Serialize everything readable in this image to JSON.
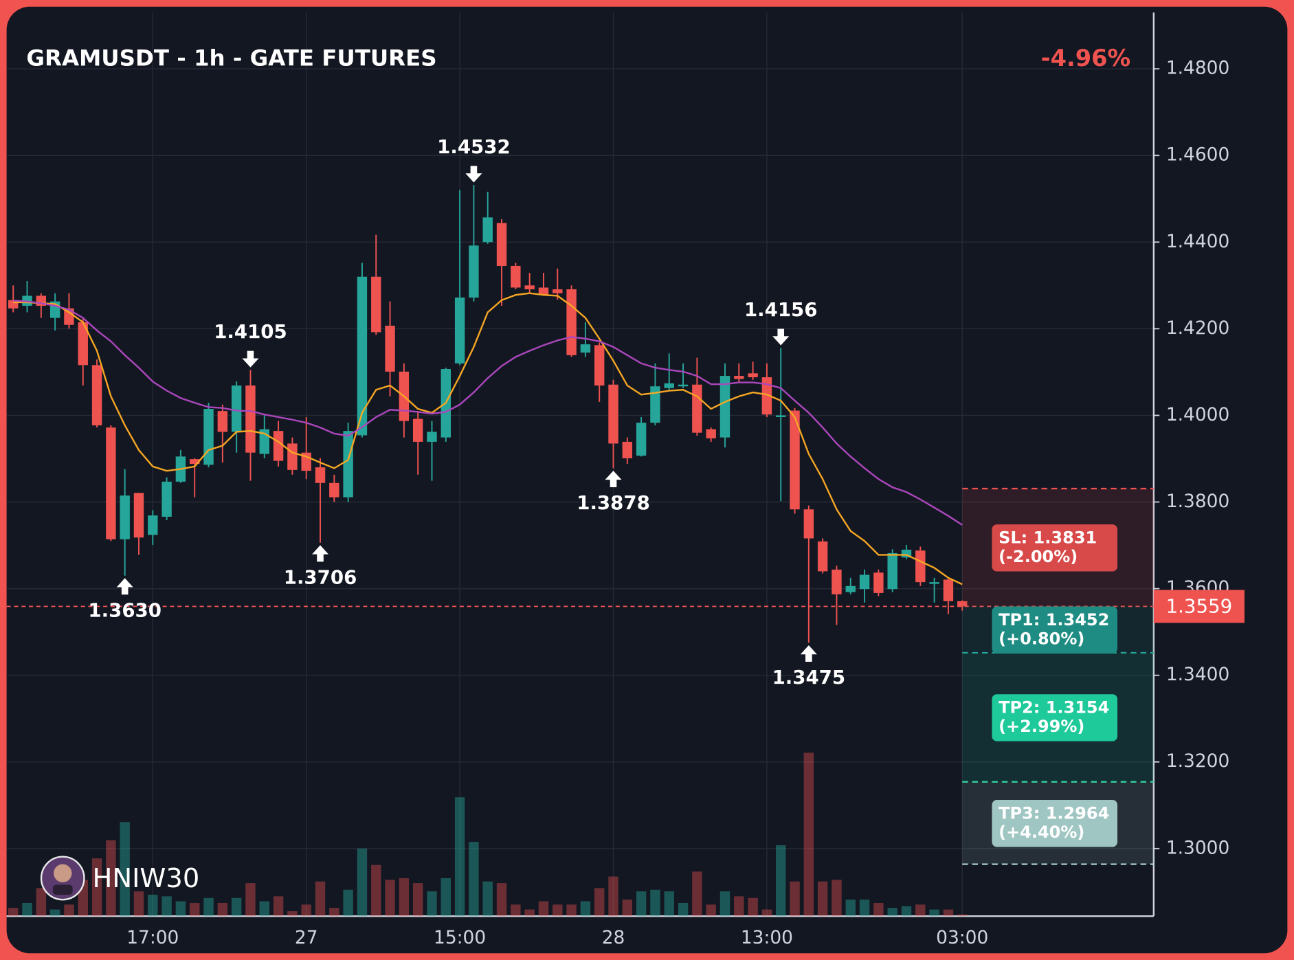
{
  "chart_data": {
    "type": "candlestick",
    "title": "GRAMUSDT - 1h - GATE FUTURES",
    "change": "-4.96%",
    "watermark": "HNIW30",
    "up_color": "#26a69a",
    "down_color": "#ef5350",
    "grid": true,
    "categories": [
      null,
      null,
      null,
      null,
      null,
      null,
      null,
      null,
      null,
      null,
      "17:00",
      null,
      null,
      null,
      null,
      null,
      null,
      null,
      null,
      null,
      null,
      "27",
      null,
      null,
      null,
      null,
      null,
      null,
      null,
      null,
      null,
      null,
      "15:00",
      null,
      null,
      null,
      null,
      null,
      null,
      null,
      null,
      null,
      null,
      "28",
      null,
      null,
      null,
      null,
      null,
      null,
      null,
      null,
      null,
      null,
      "13:00",
      null,
      null,
      null,
      null,
      null,
      null,
      null,
      null,
      null,
      null,
      null,
      null,
      null,
      "03:00"
    ],
    "open": [
      1.4266,
      1.4253,
      1.4276,
      1.4225,
      1.4247,
      1.4215,
      1.4116,
      1.3972,
      1.3714,
      1.3821,
      1.3724,
      1.3766,
      1.3847,
      1.3899,
      1.3886,
      1.401,
      1.3962,
      1.4069,
      1.3911,
      1.3964,
      1.3935,
      1.3914,
      1.388,
      1.3844,
      1.3811,
      1.3954,
      1.432,
      1.4207,
      1.4101,
      1.3992,
      1.3939,
      1.3949,
      1.412,
      1.4272,
      1.44,
      1.4444,
      1.4345,
      1.43,
      1.4295,
      1.4291,
      1.4291,
      1.4145,
      1.4162,
      1.4071,
      1.3939,
      1.3907,
      1.3983,
      1.4063,
      1.4067,
      1.4071,
      1.3968,
      1.3949,
      1.4091,
      1.4097,
      1.4088,
      1.3996,
      1.4011,
      1.3783,
      1.3709,
      1.3644,
      1.3592,
      1.3599,
      1.3637,
      1.3599,
      1.3672,
      1.3688,
      1.3611,
      1.3621,
      1.3571
    ],
    "high": [
      1.43,
      1.431,
      1.4282,
      1.4282,
      1.4282,
      1.4225,
      1.4129,
      1.3977,
      1.3876,
      1.3821,
      1.3781,
      1.3857,
      1.392,
      1.3901,
      1.4029,
      1.4025,
      1.4078,
      1.4105,
      1.4,
      1.3987,
      1.3949,
      1.3996,
      1.3901,
      1.3863,
      1.3983,
      1.4352,
      1.4417,
      1.4263,
      1.412,
      1.401,
      1.3987,
      1.411,
      1.452,
      1.4532,
      1.4516,
      1.4453,
      1.4352,
      1.4329,
      1.4329,
      1.4339,
      1.43,
      1.4215,
      1.4168,
      1.4082,
      1.3949,
      1.3996,
      1.412,
      1.4143,
      1.412,
      1.4133,
      1.3972,
      1.412,
      1.412,
      1.4124,
      1.412,
      1.4156,
      1.4017,
      1.3792,
      1.3716,
      1.3653,
      1.3625,
      1.3644,
      1.3644,
      1.3691,
      1.3701,
      1.3697,
      1.3625,
      1.3625,
      1.3573
    ],
    "low": [
      1.4238,
      1.4238,
      1.4225,
      1.4196,
      1.42,
      1.4069,
      1.3972,
      1.371,
      1.363,
      1.3678,
      1.3701,
      1.3758,
      1.3844,
      1.3811,
      1.388,
      1.3891,
      1.3914,
      1.3849,
      1.3901,
      1.3882,
      1.3863,
      1.3853,
      1.3706,
      1.38,
      1.38,
      1.3949,
      1.4186,
      1.4044,
      1.3949,
      1.3863,
      1.3849,
      1.3939,
      1.4116,
      1.4263,
      1.4396,
      1.4253,
      1.4291,
      1.4282,
      1.4276,
      1.4267,
      1.4135,
      1.4135,
      1.4031,
      1.3878,
      1.3888,
      1.3905,
      1.3977,
      1.4059,
      1.4063,
      1.3953,
      1.3939,
      1.3926,
      1.4076,
      1.4082,
      1.3996,
      1.3802,
      1.3773,
      1.3475,
      1.3635,
      1.3516,
      1.3587,
      1.3568,
      1.3583,
      1.3592,
      1.3668,
      1.3606,
      1.3568,
      1.3541,
      1.3549
    ],
    "close": [
      1.4247,
      1.4276,
      1.4253,
      1.4263,
      1.4209,
      1.4116,
      1.3977,
      1.3714,
      1.3815,
      1.3718,
      1.3769,
      1.3847,
      1.3905,
      1.3888,
      1.4015,
      1.3962,
      1.4069,
      1.3914,
      1.3968,
      1.3895,
      1.3874,
      1.3872,
      1.3844,
      1.3811,
      1.3964,
      1.432,
      1.4192,
      1.4101,
      1.3987,
      1.3939,
      1.3962,
      1.4107,
      1.4272,
      1.4392,
      1.4457,
      1.4345,
      1.4295,
      1.4291,
      1.4278,
      1.4282,
      1.4139,
      1.4164,
      1.4069,
      1.3935,
      1.3901,
      1.3983,
      1.4067,
      1.4074,
      1.4071,
      1.396,
      1.3947,
      1.4091,
      1.4084,
      1.4088,
      1.4002,
      1.4,
      1.3783,
      1.3716,
      1.364,
      1.3587,
      1.3606,
      1.3632,
      1.359,
      1.3682,
      1.369,
      1.3615,
      1.3615,
      1.3571,
      1.3559
    ],
    "moving_averages": [
      {
        "color": "#f5a623",
        "values": [
          1.4261,
          1.4261,
          1.4259,
          1.4257,
          1.4238,
          1.4215,
          1.4149,
          1.4044,
          1.3977,
          1.392,
          1.3882,
          1.3872,
          1.3876,
          1.3882,
          1.392,
          1.393,
          1.3962,
          1.3964,
          1.3958,
          1.3939,
          1.3914,
          1.3905,
          1.3891,
          1.3878,
          1.3897,
          1.4006,
          1.4059,
          1.4069,
          1.4044,
          1.4015,
          1.4006,
          1.4029,
          1.4091,
          1.4158,
          1.4238,
          1.4266,
          1.4278,
          1.4282,
          1.4278,
          1.4276,
          1.4253,
          1.4225,
          1.4177,
          1.4126,
          1.4069,
          1.4048,
          1.4052,
          1.4057,
          1.4059,
          1.4044,
          1.4015,
          1.4031,
          1.4044,
          1.4053,
          1.4048,
          1.4034,
          1.3996,
          1.3911,
          1.3853,
          1.3783,
          1.3733,
          1.371,
          1.3678,
          1.3678,
          1.3678,
          1.3663,
          1.3648,
          1.3625,
          1.361
        ]
      },
      {
        "color": "#ab47bc",
        "values": [
          1.4265,
          1.4263,
          1.4259,
          1.4253,
          1.4244,
          1.4225,
          1.4196,
          1.4171,
          1.4139,
          1.411,
          1.4078,
          1.4057,
          1.404,
          1.4029,
          1.4019,
          1.4017,
          1.4011,
          1.401,
          1.4002,
          1.3996,
          1.399,
          1.3983,
          1.3972,
          1.3958,
          1.3953,
          1.3973,
          1.3996,
          1.4013,
          1.4011,
          1.4008,
          1.4004,
          1.4008,
          1.4025,
          1.4053,
          1.4086,
          1.4114,
          1.4135,
          1.4149,
          1.4162,
          1.4173,
          1.4181,
          1.4177,
          1.4171,
          1.4158,
          1.4139,
          1.412,
          1.411,
          1.4105,
          1.4101,
          1.4091,
          1.4072,
          1.4072,
          1.4076,
          1.4076,
          1.4072,
          1.4063,
          1.4034,
          1.4006,
          1.3972,
          1.3935,
          1.3905,
          1.3878,
          1.3853,
          1.3834,
          1.3823,
          1.3806,
          1.3787,
          1.3768,
          1.3747
        ]
      }
    ],
    "volume": {
      "ylim": [
        0,
        100
      ],
      "values": [
        5,
        8,
        17,
        4,
        7,
        22,
        35,
        46,
        57,
        15,
        13,
        12,
        9,
        8,
        11,
        8,
        11,
        20,
        9,
        12,
        3,
        7,
        21,
        5,
        16,
        41,
        31,
        22,
        23,
        20,
        15,
        23,
        72,
        45,
        21,
        20,
        7,
        4,
        9,
        7,
        7,
        9,
        17,
        24,
        10,
        15,
        16,
        15,
        8,
        27,
        7,
        15,
        12,
        11,
        4,
        43,
        21,
        99,
        21,
        22,
        10,
        10,
        8,
        5,
        6,
        7,
        4,
        4,
        1
      ]
    },
    "ylim": [
      1.2844,
      1.493
    ],
    "yticks": [
      {
        "value": 1.3,
        "label": "1.3000"
      },
      {
        "value": 1.32,
        "label": "1.3200"
      },
      {
        "value": 1.34,
        "label": "1.3400"
      },
      {
        "value": 1.36,
        "label": "1.3600"
      },
      {
        "value": 1.38,
        "label": "1.3800"
      },
      {
        "value": 1.4,
        "label": "1.4000"
      },
      {
        "value": 1.42,
        "label": "1.4200"
      },
      {
        "value": 1.44,
        "label": "1.4400"
      },
      {
        "value": 1.46,
        "label": "1.4600"
      },
      {
        "value": 1.48,
        "label": "1.4800"
      }
    ],
    "last_price": 1.3559,
    "markers": [
      {
        "kind": "low",
        "value": 1.363,
        "label": "1.3630"
      },
      {
        "kind": "high",
        "value": 1.4105
      },
      {
        "kind": "low",
        "value": 1.3706
      },
      {
        "kind": "high",
        "value": 1.4532
      },
      {
        "kind": "low",
        "value": 1.3878
      },
      {
        "kind": "high",
        "value": 1.4156
      },
      {
        "kind": "low",
        "value": 1.3475
      }
    ],
    "levels": [
      {
        "price": 1.3831,
        "label": "SL: 1.3831",
        "pct": "(-2.00%)",
        "color": "#d84a4a",
        "line_color": "#ef5350"
      },
      {
        "price": 1.3452,
        "label": "TP1: 1.3452",
        "pct": "(+0.80%)",
        "color": "#1e8c82",
        "line_color": "#26a69a"
      },
      {
        "price": 1.3154,
        "label": "TP2: 1.3154",
        "pct": "(+2.99%)",
        "color": "#1ec99a",
        "line_color": "#2bd9a5"
      },
      {
        "price": 1.2964,
        "label": "TP3: 1.2964",
        "pct": "(+4.40%)",
        "color": "#9fc6c2",
        "line_color": "#b2d8d4"
      }
    ]
  }
}
